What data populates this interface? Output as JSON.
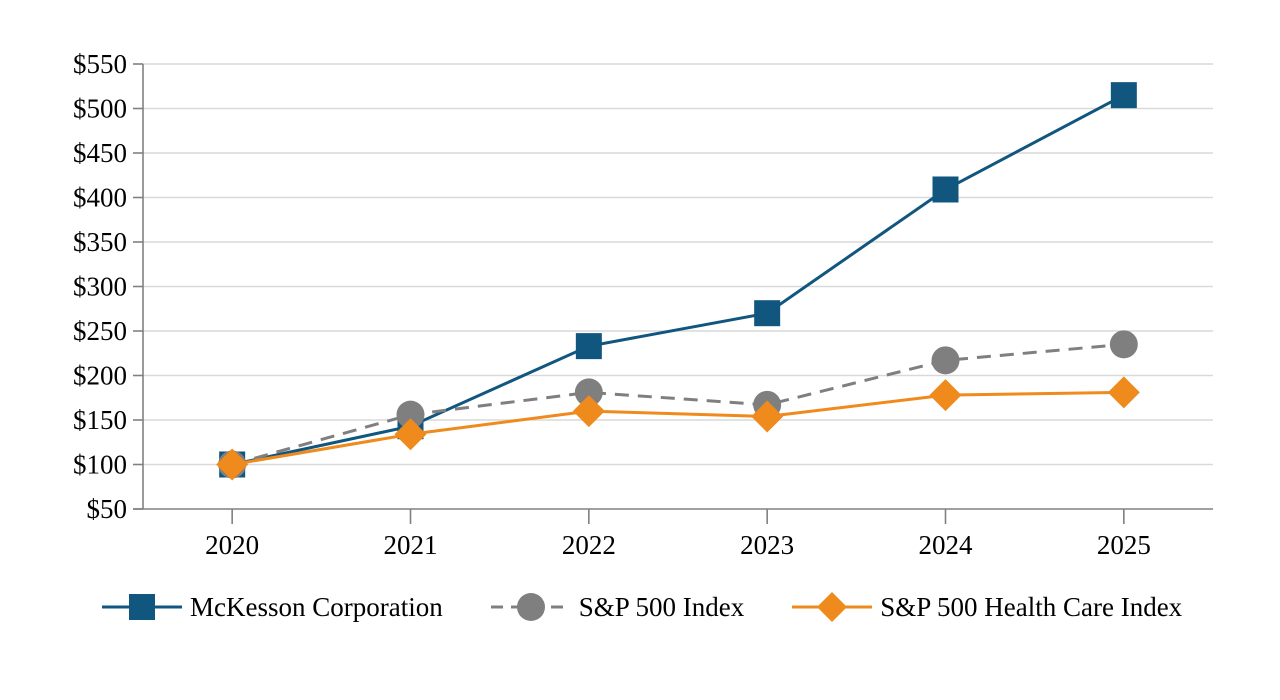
{
  "chart_data": {
    "type": "line",
    "title": "",
    "categories": [
      "2020",
      "2021",
      "2022",
      "2023",
      "2024",
      "2025"
    ],
    "series": [
      {
        "name": "McKesson Corporation",
        "marker": "square",
        "line_style": "solid",
        "color": "#10567F",
        "values": [
          100,
          143,
          233,
          270,
          409,
          515
        ]
      },
      {
        "name": "S&P 500 Index",
        "marker": "circle",
        "line_style": "dashed",
        "color": "#7F7F7F",
        "values": [
          100,
          156,
          181,
          167,
          217,
          235
        ]
      },
      {
        "name": "S&P 500 Health Care Index",
        "marker": "diamond",
        "line_style": "solid",
        "color": "#EF8A1D",
        "values": [
          100,
          134,
          160,
          154,
          178,
          181
        ]
      }
    ],
    "ylim": [
      50,
      550
    ],
    "ytick_step": 50,
    "y_tick_labels": [
      "$550",
      "$500",
      "$450",
      "$400",
      "$350",
      "$300",
      "$250",
      "$200",
      "$150",
      "$100",
      "$50"
    ],
    "xlabel": "",
    "ylabel": "",
    "grid": "horizontal",
    "legend_position": "bottom",
    "colors": {
      "axis": "#808080",
      "gridline": "#D9D9D9",
      "text": "#000000",
      "background": "#FFFFFF"
    }
  }
}
